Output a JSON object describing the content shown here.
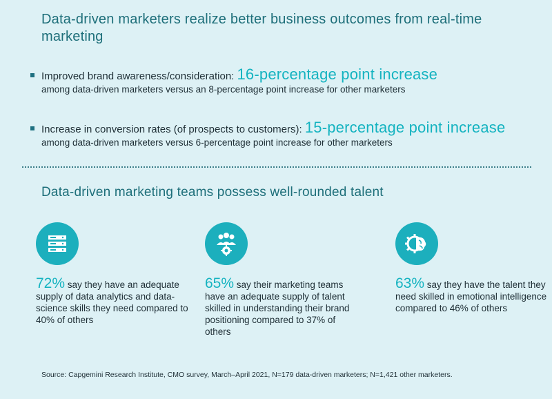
{
  "section1": {
    "title": "Data-driven marketers realize better business outcomes from real-time marketing",
    "bullets": [
      {
        "lead": "Improved brand awareness/consideration: ",
        "highlight": "16-percentage point increase",
        "sub": "among data-driven marketers versus an 8-percentage point increase for other marketers"
      },
      {
        "lead": "Increase in conversion rates (of prospects to customers): ",
        "highlight": "15-percentage point increase",
        "sub": "among data-driven marketers versus 6-percentage point increase for other marketers"
      }
    ]
  },
  "section2": {
    "title": "Data-driven marketing teams possess well-rounded talent",
    "stats": [
      {
        "icon": "server-stack-icon",
        "percent": "72%",
        "text": " say they have an adequate supply of data analytics and data-science skills they need compared to 40% of others"
      },
      {
        "icon": "team-gear-icon",
        "percent": "65%",
        "text": " say their marketing teams have an adequate supply of talent skilled in understanding their brand positioning compared to 37% of others"
      },
      {
        "icon": "brain-gear-icon",
        "percent": "63%",
        "text": " say they have the talent they need skilled in emotional intelligence compared to 46% of others"
      }
    ]
  },
  "source": "Source: Capgemini Research Institute, CMO survey, March–April 2021, N=179 data-driven marketers; N=1,421 other marketers.",
  "colors": {
    "background": "#ddf1f5",
    "accent": "#14b3c0",
    "heading": "#1e6f7a",
    "icon_bg": "#1cafbd"
  }
}
